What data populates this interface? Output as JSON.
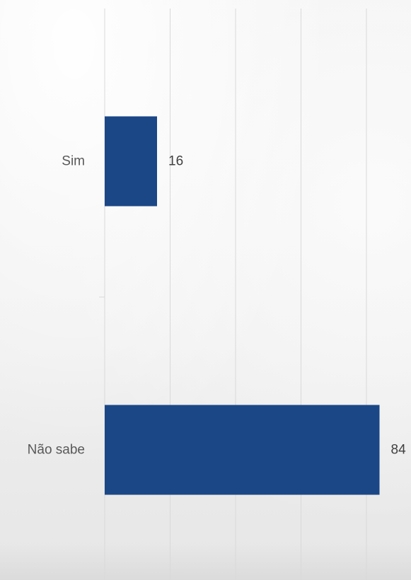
{
  "chart_data": {
    "type": "bar",
    "orientation": "horizontal",
    "categories": [
      "Sim",
      "Não sabe"
    ],
    "values": [
      16,
      84
    ],
    "data_labels": [
      "16",
      "84"
    ],
    "xlim": [
      0,
      100
    ],
    "grid": true,
    "bar_color": "#1b4787",
    "gridline_color": "#d9d9d9"
  }
}
